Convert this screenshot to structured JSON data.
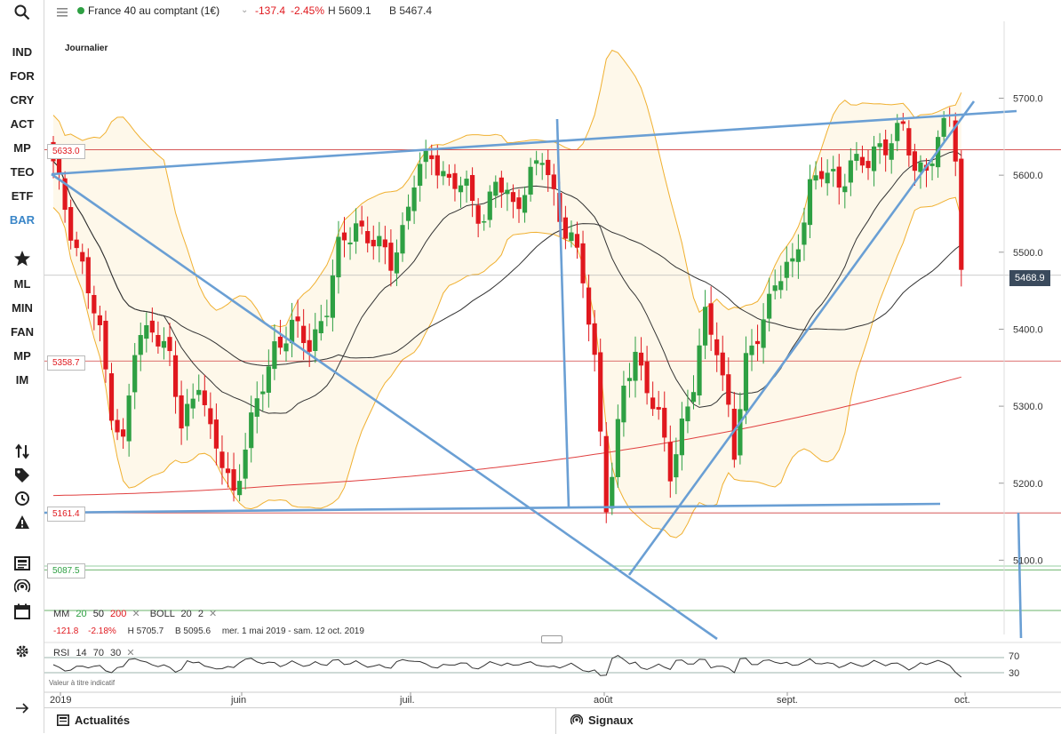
{
  "sidebar": {
    "items": [
      {
        "label": "IND",
        "active": false
      },
      {
        "label": "FOR",
        "active": false
      },
      {
        "label": "CRY",
        "active": false
      },
      {
        "label": "ACT",
        "active": false
      },
      {
        "label": "MP",
        "active": false
      },
      {
        "label": "TEO",
        "active": false
      },
      {
        "label": "ETF",
        "active": false
      },
      {
        "label": "BAR",
        "active": true
      }
    ],
    "items2": [
      {
        "label": "ML"
      },
      {
        "label": "MIN"
      },
      {
        "label": "FAN"
      },
      {
        "label": "MP"
      },
      {
        "label": "IM"
      }
    ]
  },
  "header": {
    "instrument": "France 40 au comptant (1€)",
    "change": "-137.4",
    "change_pct": "-2.45%",
    "high": "H 5609.1",
    "low": "B 5467.4",
    "status_color": "#2ea043"
  },
  "chart": {
    "period_label": "Journalier",
    "indicators": {
      "mm_label": "MM",
      "mm20": "20",
      "mm50": "50",
      "mm200": "200",
      "boll_label": "BOLL",
      "boll_p1": "20",
      "boll_p2": "2"
    },
    "stats": {
      "change": "-121.8",
      "change_pct": "-2.18%",
      "high": "H 5705.7",
      "low": "B 5095.6",
      "range": "mer. 1 mai 2019 - sam. 12 oct. 2019"
    },
    "rsi": {
      "label": "RSI",
      "p1": "14",
      "p2": "70",
      "p3": "30",
      "upper": "70",
      "lower": "30"
    },
    "disclaimer": "Valeur à titre indicatif",
    "current_price": "5468.9",
    "level_labels": [
      "5633.0",
      "5358.7",
      "5161.4",
      "5087.5"
    ]
  },
  "chart_data": {
    "type": "candlestick",
    "title": "France 40 au comptant (1€)",
    "ylim": [
      5040,
      5760
    ],
    "yticks": [
      "5700.0",
      "5600.0",
      "5500.0",
      "5400.0",
      "5300.0",
      "5200.0",
      "5100.0"
    ],
    "xticks": [
      "2019",
      "juin",
      "juil.",
      "août",
      "sept.",
      "oct."
    ],
    "last_price": 5468.9,
    "horizontal_levels": [
      5633.0,
      5358.7,
      5161.4,
      5087.5
    ],
    "series": [
      {
        "name": "MM 20"
      },
      {
        "name": "MM 50"
      },
      {
        "name": "MM 200"
      },
      {
        "name": "BOLL 20 2"
      }
    ]
  },
  "bottom": {
    "news": "Actualités",
    "signals": "Signaux"
  },
  "colors": {
    "up": "#2ea043",
    "down": "#e0181e",
    "trend": "#6a9fd4",
    "boll": "#f0b030",
    "ma200": "#e04040",
    "ma": "#333333"
  }
}
